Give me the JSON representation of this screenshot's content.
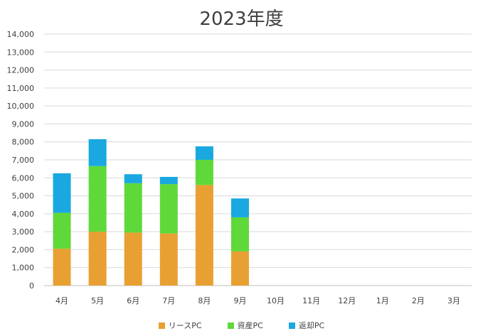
{
  "chart_data": {
    "type": "bar",
    "stacked": true,
    "title": "2023年度",
    "xlabel": "",
    "ylabel": "",
    "ylim": [
      0,
      14000
    ],
    "yticks": [
      "0",
      "1,000",
      "2,000",
      "3,000",
      "4,000",
      "5,000",
      "6,000",
      "7,000",
      "8,000",
      "9,000",
      "10,000",
      "11,000",
      "12,000",
      "13,000",
      "14,000"
    ],
    "categories": [
      "4月",
      "5月",
      "6月",
      "7月",
      "8月",
      "9月",
      "10月",
      "11月",
      "12月",
      "1月",
      "2月",
      "3月"
    ],
    "series": [
      {
        "name": "リースPC",
        "color": "#E8A032",
        "values": [
          2050,
          3000,
          2950,
          2900,
          5600,
          1900,
          0,
          0,
          0,
          0,
          0,
          0
        ]
      },
      {
        "name": "資産PC",
        "color": "#5FD83A",
        "values": [
          2000,
          3650,
          2750,
          2750,
          1400,
          1900,
          0,
          0,
          0,
          0,
          0,
          0
        ]
      },
      {
        "name": "返却PC",
        "color": "#19A8E0",
        "values": [
          2200,
          1500,
          500,
          400,
          750,
          1050,
          0,
          0,
          0,
          0,
          0,
          0
        ]
      }
    ],
    "grid": true,
    "legend": "bottom"
  }
}
